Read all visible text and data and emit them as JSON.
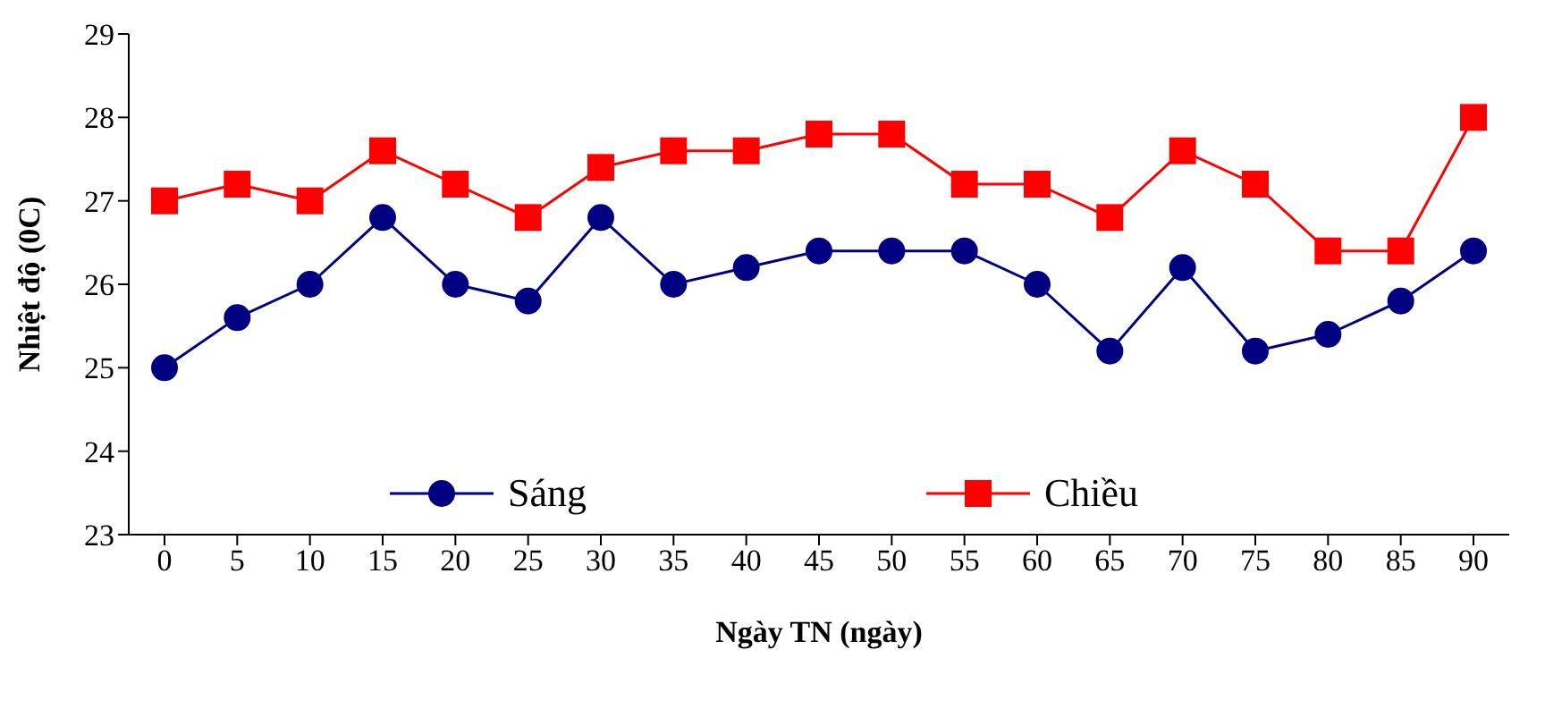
{
  "chart_data": {
    "type": "line",
    "xlabel": "Ngày TN (ngày)",
    "ylabel": "Nhiệt độ (0C)",
    "categories": [
      "0",
      "5",
      "10",
      "15",
      "20",
      "25",
      "30",
      "35",
      "40",
      "45",
      "50",
      "55",
      "60",
      "65",
      "70",
      "75",
      "80",
      "85",
      "90"
    ],
    "series": [
      {
        "name": "Sáng",
        "color": "#000080",
        "marker": "circle",
        "values": [
          25.0,
          25.6,
          26.0,
          26.8,
          26.0,
          25.8,
          26.8,
          26.0,
          26.2,
          26.4,
          26.4,
          26.4,
          26.0,
          25.2,
          26.2,
          25.2,
          25.4,
          25.8,
          26.4
        ]
      },
      {
        "name": "Chiều",
        "color": "#ff0000",
        "marker": "square",
        "values": [
          27.0,
          27.2,
          27.0,
          27.6,
          27.2,
          26.8,
          27.4,
          27.6,
          27.6,
          27.8,
          27.8,
          27.2,
          27.2,
          26.8,
          27.6,
          27.2,
          26.4,
          26.4,
          28.0
        ]
      }
    ],
    "ylim": [
      23,
      29
    ],
    "yticks": [
      23,
      24,
      25,
      26,
      27,
      28,
      29
    ],
    "grid": false,
    "legend": "bottom",
    "line_style": "solid"
  }
}
